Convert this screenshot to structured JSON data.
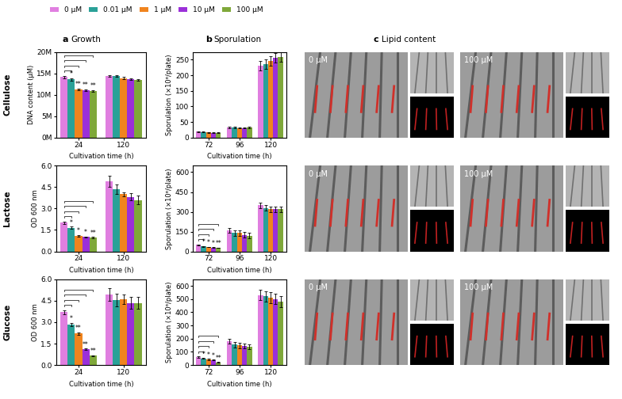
{
  "figure": {
    "panels": [
      {
        "letter": "a",
        "title": "Growth"
      },
      {
        "letter": "b",
        "title": "Sporulation"
      },
      {
        "letter": "c",
        "title": "Lipid content"
      }
    ],
    "rows": [
      "Cellulose",
      "Lactose",
      "Glucose"
    ],
    "image_labels": [
      "0 μM",
      "100 μM"
    ]
  },
  "chart_data": [
    {
      "type": "bar",
      "x_label": "Cultivation time (h)",
      "y_label": "DNA content (μM)",
      "legend": "upper left",
      "categories": [
        "24",
        "120"
      ],
      "ylim": [
        0,
        20
      ],
      "yticks": [
        {
          "value": 0,
          "label": "0M"
        },
        {
          "value": 5,
          "label": "5M"
        },
        {
          "value": 10,
          "label": "10M"
        },
        {
          "value": 15,
          "label": "15M"
        },
        {
          "value": 20,
          "label": "20M"
        }
      ],
      "series": [
        {
          "name": "0 μM",
          "color": "#e07fe0",
          "values": [
            14.1,
            14.4
          ],
          "errors": [
            0.3,
            0.2
          ],
          "significance": [
            null,
            null
          ]
        },
        {
          "name": "0.01 μM",
          "color": "#2aa198",
          "values": [
            13.6,
            14.3
          ],
          "errors": [
            0.3,
            0.2
          ],
          "significance": [
            "*",
            null
          ]
        },
        {
          "name": "1 μM",
          "color": "#f0841e",
          "values": [
            11.3,
            13.9
          ],
          "errors": [
            0.2,
            0.2
          ],
          "significance": [
            "**",
            null
          ]
        },
        {
          "name": "10 μM",
          "color": "#9b30d9",
          "values": [
            11.1,
            13.7
          ],
          "errors": [
            0.2,
            0.2
          ],
          "significance": [
            "**",
            null
          ]
        },
        {
          "name": "100 μM",
          "color": "#7fa83a",
          "values": [
            10.9,
            13.4
          ],
          "errors": [
            0.2,
            0.2
          ],
          "significance": [
            "**",
            null
          ]
        }
      ]
    },
    {
      "type": "bar",
      "x_label": "Cultivation time (h)",
      "y_label": "Sporulation (×10⁶/plate)",
      "categories": [
        "72",
        "96",
        "120"
      ],
      "ylim": [
        0,
        275
      ],
      "yticks": [
        0,
        50,
        100,
        150,
        200,
        250
      ],
      "series": [
        {
          "name": "0 μM",
          "color": "#e07fe0",
          "values": [
            19,
            33,
            230
          ],
          "errors": [
            1.5,
            2,
            15
          ],
          "significance": [
            null,
            null,
            null
          ]
        },
        {
          "name": "0.01 μM",
          "color": "#2aa198",
          "values": [
            18,
            32,
            235
          ],
          "errors": [
            1.5,
            2,
            15
          ],
          "significance": [
            null,
            null,
            null
          ]
        },
        {
          "name": "1 μM",
          "color": "#f0841e",
          "values": [
            17,
            31,
            245
          ],
          "errors": [
            1.5,
            2,
            15
          ],
          "significance": [
            null,
            null,
            null
          ]
        },
        {
          "name": "10 μM",
          "color": "#9b30d9",
          "values": [
            16,
            31,
            255
          ],
          "errors": [
            1.5,
            2,
            15
          ],
          "significance": [
            null,
            null,
            null
          ]
        },
        {
          "name": "100 μM",
          "color": "#7fa83a",
          "values": [
            15.5,
            33,
            258
          ],
          "errors": [
            1.5,
            2,
            15
          ],
          "significance": [
            null,
            null,
            null
          ]
        }
      ]
    },
    {
      "type": "bar",
      "x_label": "Cultivation time (h)",
      "y_label": "OD 600 nm",
      "categories": [
        "24",
        "120"
      ],
      "ylim": [
        0,
        6
      ],
      "yticks": [
        {
          "value": 0,
          "label": "0.0"
        },
        {
          "value": 1.5,
          "label": "1.5"
        },
        {
          "value": 3,
          "label": "3.0"
        },
        {
          "value": 4.5,
          "label": "4.5"
        },
        {
          "value": 6,
          "label": "6.0"
        }
      ],
      "series": [
        {
          "name": "0 μM",
          "color": "#e07fe0",
          "values": [
            2.0,
            4.9
          ],
          "errors": [
            0.1,
            0.4
          ],
          "significance": [
            null,
            null
          ]
        },
        {
          "name": "0.01 μM",
          "color": "#2aa198",
          "values": [
            1.65,
            4.35
          ],
          "errors": [
            0.08,
            0.35
          ],
          "significance": [
            "*",
            null
          ]
        },
        {
          "name": "1 μM",
          "color": "#f0841e",
          "values": [
            1.1,
            4.0
          ],
          "errors": [
            0.05,
            0.15
          ],
          "significance": [
            "*",
            null
          ]
        },
        {
          "name": "10 μM",
          "color": "#9b30d9",
          "values": [
            1.0,
            3.8
          ],
          "errors": [
            0.05,
            0.25
          ],
          "significance": [
            "*",
            null
          ]
        },
        {
          "name": "100 μM",
          "color": "#7fa83a",
          "values": [
            0.95,
            3.6
          ],
          "errors": [
            0.05,
            0.3
          ],
          "significance": [
            "**",
            null
          ]
        }
      ]
    },
    {
      "type": "bar",
      "x_label": "Cultivation time (h)",
      "y_label": "Sporulation (×10⁶/plate)",
      "categories": [
        "72",
        "96",
        "120"
      ],
      "ylim": [
        0,
        650
      ],
      "yticks": [
        0,
        150,
        300,
        450,
        600
      ],
      "series": [
        {
          "name": "0 μM",
          "color": "#e07fe0",
          "values": [
            50,
            160,
            350
          ],
          "errors": [
            3,
            20,
            20
          ],
          "significance": [
            null,
            null,
            null
          ]
        },
        {
          "name": "0.01 μM",
          "color": "#2aa198",
          "values": [
            37,
            140,
            330
          ],
          "errors": [
            3,
            20,
            20
          ],
          "significance": [
            "*",
            null,
            null
          ]
        },
        {
          "name": "1 μM",
          "color": "#f0841e",
          "values": [
            33,
            140,
            320
          ],
          "errors": [
            2,
            20,
            20
          ],
          "significance": [
            "*",
            null,
            null
          ]
        },
        {
          "name": "10 μM",
          "color": "#9b30d9",
          "values": [
            29,
            125,
            320
          ],
          "errors": [
            2,
            20,
            20
          ],
          "significance": [
            "*",
            null,
            null
          ]
        },
        {
          "name": "100 μM",
          "color": "#7fa83a",
          "values": [
            27,
            120,
            320
          ],
          "errors": [
            2,
            20,
            20
          ],
          "significance": [
            "**",
            null,
            null
          ]
        }
      ]
    },
    {
      "type": "bar",
      "x_label": "Cultivation time (h)",
      "y_label": "OD 600 nm",
      "categories": [
        "24",
        "120"
      ],
      "ylim": [
        0,
        6
      ],
      "yticks": [
        {
          "value": 0,
          "label": "0.0"
        },
        {
          "value": 1.5,
          "label": "1.5"
        },
        {
          "value": 3,
          "label": "3.0"
        },
        {
          "value": 4.5,
          "label": "4.5"
        },
        {
          "value": 6,
          "label": "6.0"
        }
      ],
      "series": [
        {
          "name": "0 μM",
          "color": "#e07fe0",
          "values": [
            3.7,
            4.95
          ],
          "errors": [
            0.15,
            0.45
          ],
          "significance": [
            null,
            null
          ]
        },
        {
          "name": "0.01 μM",
          "color": "#2aa198",
          "values": [
            2.85,
            4.55
          ],
          "errors": [
            0.12,
            0.45
          ],
          "significance": [
            "*",
            null
          ]
        },
        {
          "name": "1 μM",
          "color": "#f0841e",
          "values": [
            2.2,
            4.6
          ],
          "errors": [
            0.1,
            0.35
          ],
          "significance": [
            "**",
            null
          ]
        },
        {
          "name": "10 μM",
          "color": "#9b30d9",
          "values": [
            1.1,
            4.35
          ],
          "errors": [
            0.06,
            0.4
          ],
          "significance": [
            "**",
            null
          ]
        },
        {
          "name": "100 μM",
          "color": "#7fa83a",
          "values": [
            0.65,
            4.35
          ],
          "errors": [
            0.04,
            0.4
          ],
          "significance": [
            "**",
            null
          ]
        }
      ]
    },
    {
      "type": "bar",
      "x_label": "Cultivation time (h)",
      "y_label": "Sporulation (×10⁶/plate)",
      "categories": [
        "72",
        "96",
        "120"
      ],
      "ylim": [
        0,
        650
      ],
      "yticks": [
        0,
        100,
        200,
        300,
        400,
        500,
        600
      ],
      "series": [
        {
          "name": "0 μM",
          "color": "#e07fe0",
          "values": [
            60,
            180,
            530
          ],
          "errors": [
            5,
            20,
            40
          ],
          "significance": [
            null,
            null,
            null
          ]
        },
        {
          "name": "0.01 μM",
          "color": "#2aa198",
          "values": [
            50,
            155,
            520
          ],
          "errors": [
            4,
            20,
            40
          ],
          "significance": [
            "*",
            null,
            null
          ]
        },
        {
          "name": "1 μM",
          "color": "#f0841e",
          "values": [
            42,
            148,
            510
          ],
          "errors": [
            4,
            20,
            40
          ],
          "significance": [
            "*",
            null,
            null
          ]
        },
        {
          "name": "10 μM",
          "color": "#9b30d9",
          "values": [
            38,
            145,
            500
          ],
          "errors": [
            4,
            20,
            40
          ],
          "significance": [
            "*",
            null,
            null
          ]
        },
        {
          "name": "100 μM",
          "color": "#7fa83a",
          "values": [
            20,
            138,
            480
          ],
          "errors": [
            3,
            20,
            40
          ],
          "significance": [
            "**",
            null,
            null
          ]
        }
      ]
    }
  ]
}
